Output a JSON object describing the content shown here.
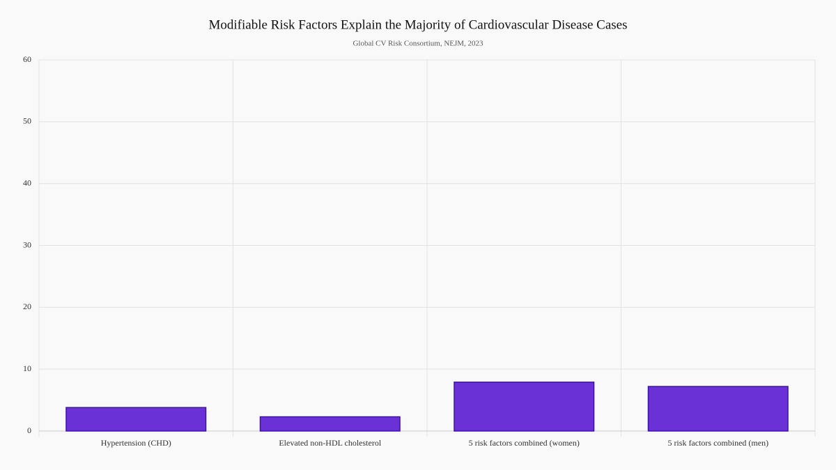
{
  "chart_data": {
    "type": "bar",
    "title": "Modifiable Risk Factors Explain the Majority of Cardiovascular Disease Cases",
    "subtitle": "Global CV Risk Consortium, NEJM, 2023",
    "categories": [
      "Hypertension (CHD)",
      "Elevated non-HDL cholesterol",
      "5 risk factors combined (women)",
      "5 risk factors combined (men)"
    ],
    "values": [
      3.8,
      2.3,
      7.9,
      7.2
    ],
    "color": "#6a32d6",
    "ylim": [
      0,
      60
    ],
    "yticks": [
      0,
      10,
      20,
      30,
      40,
      50,
      60
    ],
    "grid": true
  }
}
